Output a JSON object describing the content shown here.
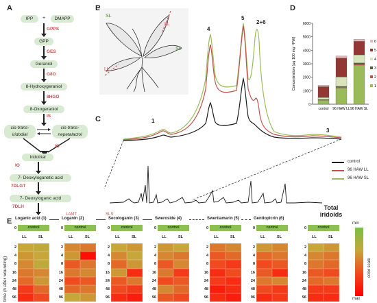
{
  "panel_labels": {
    "a": "A",
    "b": "B",
    "c": "C",
    "d": "D",
    "e": "E"
  },
  "pathway": {
    "start": [
      "IPP",
      "DMAPP"
    ],
    "plus": "+",
    "steps": [
      {
        "enzyme": "GPPS",
        "product": "GPP"
      },
      {
        "enzyme": "GES",
        "product": "Geraniol"
      },
      {
        "enzyme": "G8O",
        "product": "8-Hydroxygeraniol"
      },
      {
        "enzyme": "8HGO",
        "product": "8-Oxogeraniol"
      },
      {
        "enzyme": "IS",
        "product": ""
      }
    ],
    "branch_left": "cis-trans-\niridodial",
    "branch_right": "cis-trans-\nnepetalactol",
    "after": [
      {
        "enzyme": "IO",
        "product": "Iridotrial"
      },
      {
        "enzyme": "IO",
        "product": "7- Deoxyloganetic acid"
      },
      {
        "enzyme": "7DLGT",
        "product": "7- Deoxyloganic acid"
      },
      {
        "enzyme": "7DLH",
        "product": ""
      }
    ]
  },
  "plant_labels": {
    "sl_left": "SL",
    "ll_top": "LL",
    "sl_right": "SL",
    "ll_left": "LL"
  },
  "chromatogram": {
    "peak_labels": [
      "1",
      "4",
      "5",
      "2+6",
      "3"
    ],
    "legend": [
      {
        "name": "control",
        "color": "#1a1a1a"
      },
      {
        "name": "96 HAW LL",
        "color": "#c0504d"
      },
      {
        "name": "96 HAW SL",
        "color": "#9bbb59"
      }
    ]
  },
  "chart_data": {
    "type": "bar",
    "ylabel": "Concentration (µg 100 mg⁻¹FW)",
    "ylim": [
      0,
      6000
    ],
    "yticks": [
      0,
      1000,
      2000,
      3000,
      4000,
      5000,
      6000
    ],
    "categories": [
      "control",
      "96 HAW LL",
      "96 HAW SL"
    ],
    "series": [
      {
        "name": "1",
        "color": "#9bbb59",
        "values": [
          300,
          1200,
          2900
        ]
      },
      {
        "name": "2",
        "color": "#c0504d",
        "values": [
          30,
          80,
          100
        ]
      },
      {
        "name": "3",
        "color": "#4f6228",
        "values": [
          20,
          40,
          60
        ]
      },
      {
        "name": "4",
        "color": "#d8e4bc",
        "values": [
          150,
          700,
          600
        ]
      },
      {
        "name": "5",
        "color": "#943634",
        "values": [
          800,
          1400,
          1000
        ]
      },
      {
        "name": "6",
        "color": "#e6b9b8",
        "values": [
          100,
          150,
          150
        ]
      }
    ],
    "legend_placement": "right"
  },
  "heatmaps": {
    "time_axis_label": "time (h after wounding)",
    "control_label": "control",
    "col_labels": [
      "LL",
      "SL"
    ],
    "time_points": [
      "0",
      "2",
      "4",
      "8",
      "16",
      "24",
      "48",
      "96"
    ],
    "arrow_enzymes": [
      "LAMT",
      "SLS"
    ],
    "total_title": "Total\niridoids",
    "scale": {
      "min_label": "min",
      "max_label": "max",
      "axis_label": "color scale"
    },
    "compounds": [
      {
        "title": "Loganic acid (1)",
        "values": [
          [
            0.45,
            0.4
          ],
          [
            0.5,
            0.45
          ],
          [
            0.55,
            0.4
          ],
          [
            0.6,
            0.55
          ],
          [
            0.65,
            0.5
          ],
          [
            0.8,
            0.65
          ],
          [
            0.85,
            0.75
          ]
        ]
      },
      {
        "title": "Loganin (2)",
        "values": [
          [
            0.55,
            0.6
          ],
          [
            0.5,
            0.95
          ],
          [
            0.7,
            0.6
          ],
          [
            0.6,
            0.55
          ],
          [
            0.75,
            0.7
          ],
          [
            0.65,
            0.6
          ],
          [
            0.45,
            0.5
          ]
        ]
      },
      {
        "title": "Secologanin (3)",
        "values": [
          [
            0.45,
            0.5
          ],
          [
            0.55,
            0.45
          ],
          [
            0.65,
            0.5
          ],
          [
            0.5,
            0.85
          ],
          [
            0.7,
            0.6
          ],
          [
            0.75,
            0.8
          ],
          [
            0.85,
            0.9
          ]
        ]
      },
      {
        "title": "Sweroside (4)",
        "values": [
          [
            0.5,
            0.45
          ],
          [
            0.55,
            0.6
          ],
          [
            0.7,
            0.55
          ],
          [
            0.6,
            0.8
          ],
          [
            0.75,
            0.7
          ],
          [
            0.55,
            0.65
          ],
          [
            0.7,
            0.75
          ]
        ]
      },
      {
        "title": "Swertiamarin (5)",
        "values": [
          [
            0.6,
            0.55
          ],
          [
            0.7,
            0.65
          ],
          [
            0.75,
            0.8
          ],
          [
            0.85,
            0.75
          ],
          [
            0.8,
            0.85
          ],
          [
            0.9,
            0.85
          ],
          [
            0.85,
            0.9
          ]
        ]
      },
      {
        "title": "Gentiopicrin (6)",
        "values": [
          [
            0.5,
            0.55
          ],
          [
            0.65,
            0.6
          ],
          [
            0.75,
            0.7
          ],
          [
            0.7,
            0.85
          ],
          [
            0.6,
            0.55
          ],
          [
            0.75,
            0.8
          ],
          [
            0.85,
            0.8
          ]
        ]
      },
      {
        "title": "",
        "values": [
          [
            0.45,
            0.5
          ],
          [
            0.55,
            0.6
          ],
          [
            0.6,
            0.65
          ],
          [
            0.7,
            0.75
          ],
          [
            0.65,
            0.6
          ],
          [
            0.8,
            0.8
          ],
          [
            0.85,
            0.85
          ]
        ]
      }
    ]
  }
}
